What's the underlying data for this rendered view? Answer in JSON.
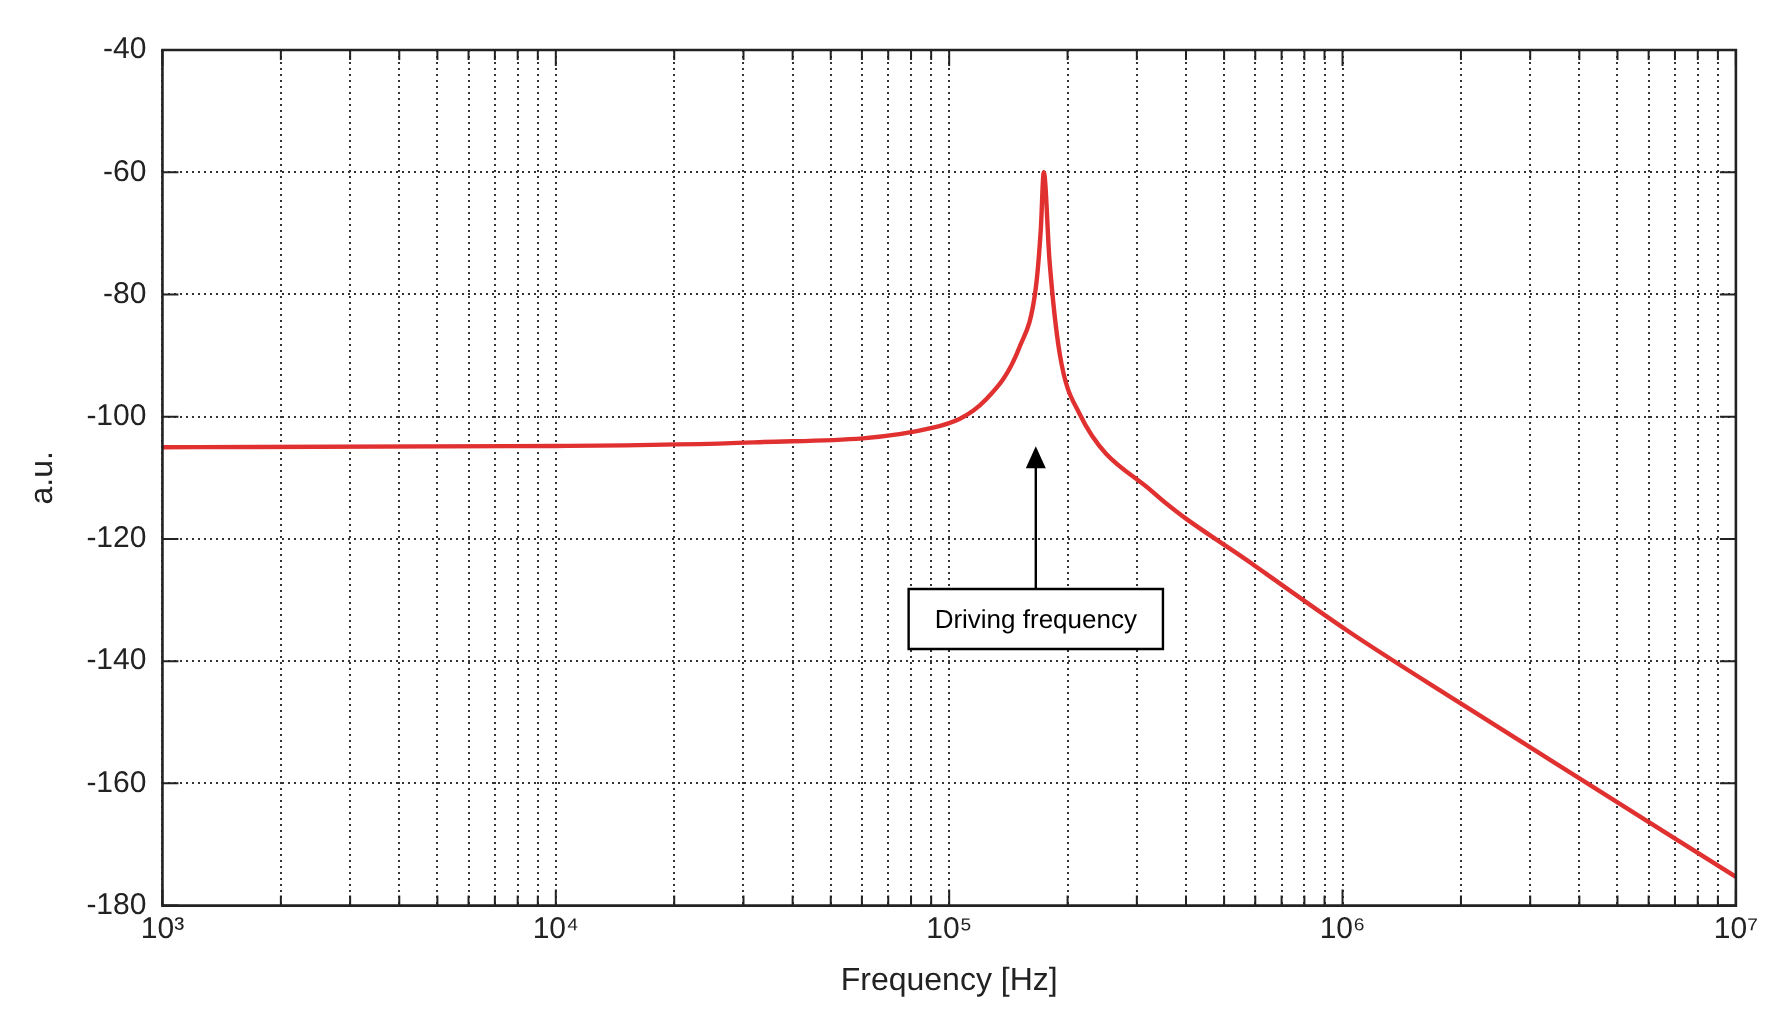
{
  "chart_data": {
    "type": "line",
    "xlabel": "Frequency [Hz]",
    "ylabel": "a.u.",
    "x": [
      1000,
      10000,
      31900,
      91000,
      124000,
      151000,
      166000,
      171000,
      174000,
      180000,
      191000,
      214000,
      329000,
      590000,
      1050000,
      1960000,
      10000000
    ],
    "series": [
      {
        "color": "#e03030",
        "values": [
          -105,
          -104.8,
          -104.2,
          -101.8,
          -97.2,
          -88.6,
          -79,
          -69.3,
          -60,
          -74.6,
          -89.7,
          -99.4,
          -112.3,
          -124.1,
          -135.4,
          -146.6,
          -175.3
        ]
      }
    ],
    "log": "x",
    "xlim": [
      1000,
      10000000
    ],
    "ylim": [
      -180,
      -40
    ],
    "xticks": [
      {
        "value": 1000,
        "label": "10³"
      },
      {
        "value": 2000,
        "label": null
      },
      {
        "value": 3000,
        "label": null
      },
      {
        "value": 4000,
        "label": null
      },
      {
        "value": 5000,
        "label": null
      },
      {
        "value": 6000,
        "label": null
      },
      {
        "value": 7000,
        "label": null
      },
      {
        "value": 8000,
        "label": null
      },
      {
        "value": 9000,
        "label": null
      },
      {
        "value": 10000,
        "label": "10⁴"
      },
      {
        "value": 20000,
        "label": null
      },
      {
        "value": 30000,
        "label": null
      },
      {
        "value": 40000,
        "label": null
      },
      {
        "value": 50000,
        "label": null
      },
      {
        "value": 60000,
        "label": null
      },
      {
        "value": 70000,
        "label": null
      },
      {
        "value": 80000,
        "label": null
      },
      {
        "value": 90000,
        "label": null
      },
      {
        "value": 100000,
        "label": "10⁵"
      },
      {
        "value": 200000,
        "label": null
      },
      {
        "value": 300000,
        "label": null
      },
      {
        "value": 400000,
        "label": null
      },
      {
        "value": 500000,
        "label": null
      },
      {
        "value": 600000,
        "label": null
      },
      {
        "value": 700000,
        "label": null
      },
      {
        "value": 800000,
        "label": null
      },
      {
        "value": 900000,
        "label": null
      },
      {
        "value": 1000000,
        "label": "10⁶"
      },
      {
        "value": 2000000,
        "label": null
      },
      {
        "value": 3000000,
        "label": null
      },
      {
        "value": 4000000,
        "label": null
      },
      {
        "value": 5000000,
        "label": null
      },
      {
        "value": 6000000,
        "label": null
      },
      {
        "value": 7000000,
        "label": null
      },
      {
        "value": 8000000,
        "label": null
      },
      {
        "value": 9000000,
        "label": null
      },
      {
        "value": 10000000,
        "label": "10⁷"
      }
    ],
    "yticks": [
      -180,
      -160,
      -140,
      -120,
      -100,
      -80,
      -60,
      -40
    ],
    "grid": true,
    "marker": "none",
    "line_style": "solid",
    "legend": false,
    "annotations": [
      "Driving frequency"
    ]
  }
}
